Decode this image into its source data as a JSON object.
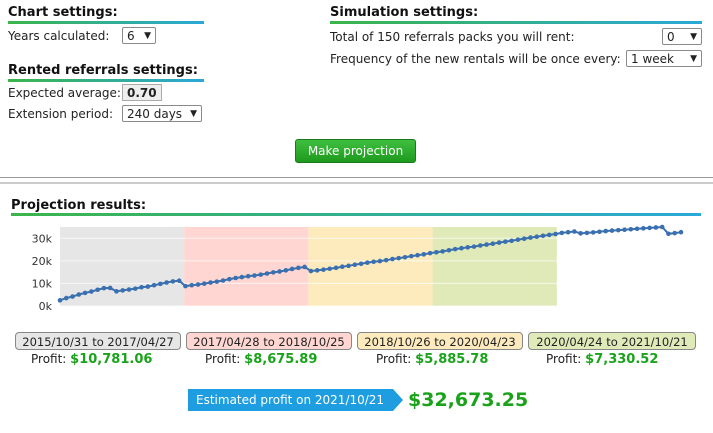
{
  "chart_settings": {
    "title": "Chart settings:",
    "years_label": "Years calculated:",
    "years_value": "6"
  },
  "rented_settings": {
    "title": "Rented referrals settings:",
    "expected_label": "Expected average:",
    "expected_value": "0.70",
    "extension_label": "Extension period:",
    "extension_value": "240 days"
  },
  "simulation_settings": {
    "title": "Simulation settings:",
    "packs_label": "Total of 150 referrals packs you will rent:",
    "packs_value": "0",
    "frequency_label": "Frequency of the new rentals will be once every:",
    "frequency_value": "1 week"
  },
  "make_projection_label": "Make projection",
  "results_title": "Projection results:",
  "colors": {
    "period1": "#e6e6e6",
    "period2": "#ffd6d2",
    "period3": "#fdebbd",
    "period4": "#dfeab8",
    "line": "#3a6fb0",
    "profit_green": "#1aa31a",
    "estimate_blue": "#1e9ee0"
  },
  "chart_data": {
    "type": "line",
    "yticks": [
      "0k",
      "10k",
      "20k",
      "30k"
    ],
    "ylim": [
      0,
      35000
    ],
    "bands": [
      {
        "from": 0,
        "to": 20
      },
      {
        "from": 20,
        "to": 40
      },
      {
        "from": 40,
        "to": 60
      },
      {
        "from": 60,
        "to": 80
      }
    ],
    "series": [
      {
        "values": [
          2500,
          3500,
          4200,
          5100,
          5800,
          6400,
          7200,
          7900,
          8000,
          6500,
          6900,
          7300,
          7700,
          8300,
          8600,
          9200,
          9800,
          10400,
          10900,
          11200,
          8800,
          9200,
          9500,
          9900,
          10400,
          10800,
          11300,
          11900,
          12400,
          12800,
          13200,
          13500,
          13900,
          14400,
          14900,
          15300,
          15800,
          16400,
          16900,
          17300,
          15500,
          15800,
          16100,
          16500,
          16900,
          17400,
          17800,
          18300,
          18700,
          19200,
          19600,
          19900,
          20300,
          20800,
          21200,
          21600,
          22100,
          22500,
          22900,
          23400,
          23800,
          24200,
          24700,
          25200,
          25600,
          26000,
          26300,
          26800,
          27200,
          27600,
          28100,
          28500,
          28900,
          29400,
          29800,
          30300,
          30700,
          31100,
          31500,
          31900,
          32400,
          32700,
          33000,
          32200,
          32400,
          32600,
          32900,
          33200,
          33400,
          33600,
          33800,
          34000,
          34200,
          34400,
          34600,
          34800,
          35000,
          32000,
          32300,
          32700
        ]
      }
    ]
  },
  "periods": [
    {
      "label": "2015/10/31 to 2017/04/27",
      "profit_label": "Profit:",
      "profit": "$10,781.06"
    },
    {
      "label": "2017/04/28 to 2018/10/25",
      "profit_label": "Profit:",
      "profit": "$8,675.89"
    },
    {
      "label": "2018/10/26 to 2020/04/23",
      "profit_label": "Profit:",
      "profit": "$5,885.78"
    },
    {
      "label": "2020/04/24 to 2021/10/21",
      "profit_label": "Profit:",
      "profit": "$7,330.52"
    }
  ],
  "estimate": {
    "label": "Estimated profit on 2021/10/21",
    "value": "$32,673.25"
  }
}
